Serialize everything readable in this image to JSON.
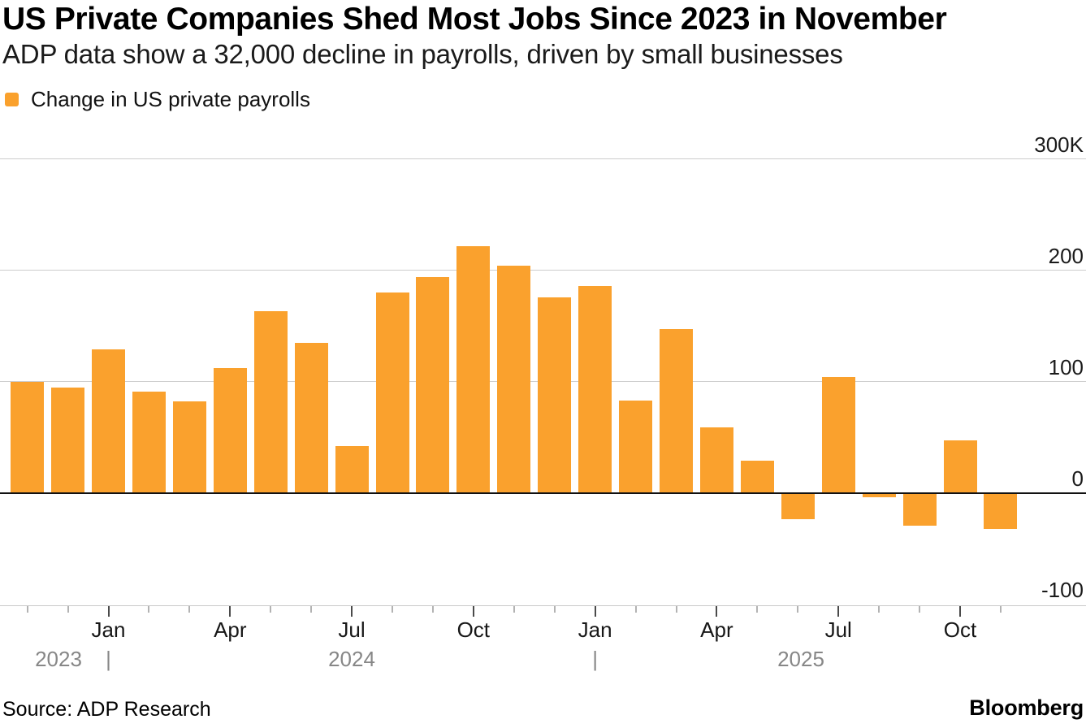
{
  "header": {
    "title": "US Private Companies Shed Most Jobs Since 2023 in November",
    "subtitle": "ADP data show a 32,000 decline in payrolls, driven by small businesses"
  },
  "legend": {
    "label": "Change in US private payrolls",
    "swatch_color": "#FAA12D"
  },
  "footer": {
    "source": "Source: ADP Research",
    "brand": "Bloomberg"
  },
  "chart_data": {
    "type": "bar",
    "title": "US Private Companies Shed Most Jobs Since 2023 in November",
    "subtitle": "ADP data show a 32,000 decline in payrolls, driven by small businesses",
    "series_name": "Change in US private payrolls",
    "unit": "thousands of jobs (K)",
    "bar_color": "#FAA12D",
    "legend_position": "top-left",
    "x": [
      "Nov 2023",
      "Dec 2023",
      "Jan 2024",
      "Feb 2024",
      "Mar 2024",
      "Apr 2024",
      "May 2024",
      "Jun 2024",
      "Jul 2024",
      "Aug 2024",
      "Sep 2024",
      "Oct 2024",
      "Nov 2024",
      "Dec 2024",
      "Jan 2025",
      "Feb 2025",
      "Mar 2025",
      "Apr 2025",
      "May 2025",
      "Jun 2025",
      "Jul 2025",
      "Aug 2025",
      "Sep 2025",
      "Oct 2025",
      "Nov 2025"
    ],
    "values": [
      100,
      95,
      129,
      91,
      82,
      112,
      163,
      135,
      42,
      180,
      194,
      222,
      204,
      176,
      186,
      83,
      147,
      59,
      29,
      -23,
      104,
      -3,
      -29,
      47,
      -32
    ],
    "y_axis": {
      "tick_labels": [
        "300K",
        "200",
        "100",
        "0",
        "-100"
      ],
      "tick_values": [
        300,
        200,
        100,
        0,
        -100
      ],
      "ylim": [
        -100,
        300
      ],
      "grid": true
    },
    "x_axis": {
      "major_tick_labels": [
        "Jan",
        "Apr",
        "Jul",
        "Oct",
        "Jan",
        "Apr",
        "Jul",
        "Oct"
      ],
      "major_tick_month_indices": [
        2,
        5,
        8,
        11,
        14,
        17,
        20,
        23
      ],
      "year_labels": [
        "2023",
        "2024",
        "2025"
      ],
      "year_divider_glyph": "|"
    }
  }
}
